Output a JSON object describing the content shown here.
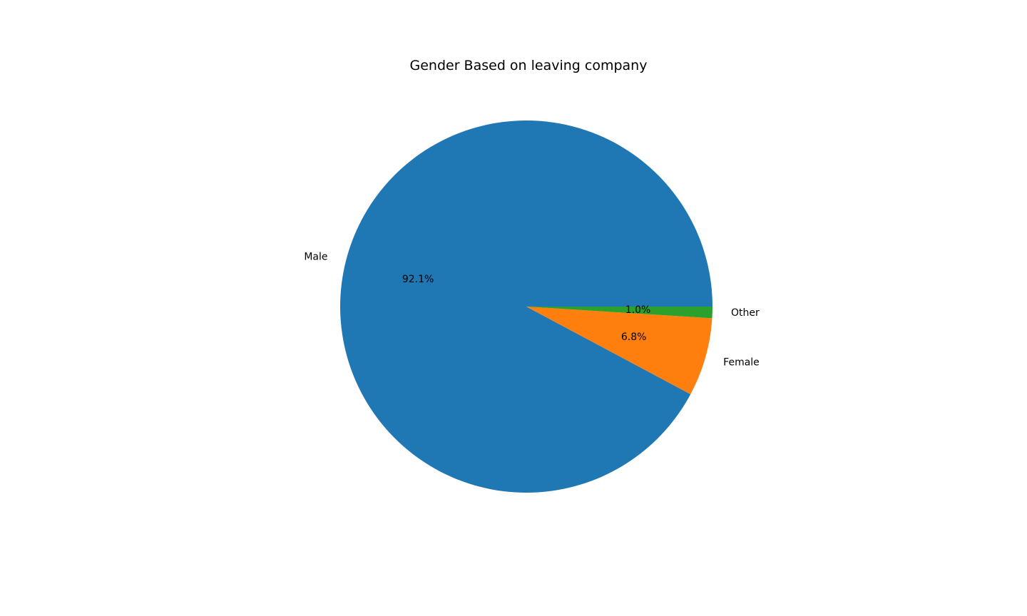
{
  "chart_data": {
    "type": "pie",
    "title": "Gender Based on leaving company",
    "start_angle_deg": 0,
    "direction": "counterclockwise",
    "slices": [
      {
        "label": "Male",
        "value": 92.1,
        "pct_label": "92.1%",
        "color": "#1f77b4"
      },
      {
        "label": "Female",
        "value": 6.8,
        "pct_label": "6.8%",
        "color": "#ff7f0e"
      },
      {
        "label": "Other",
        "value": 1.0,
        "pct_label": "1.0%",
        "color": "#2ca02c"
      }
    ],
    "legend": "none"
  }
}
